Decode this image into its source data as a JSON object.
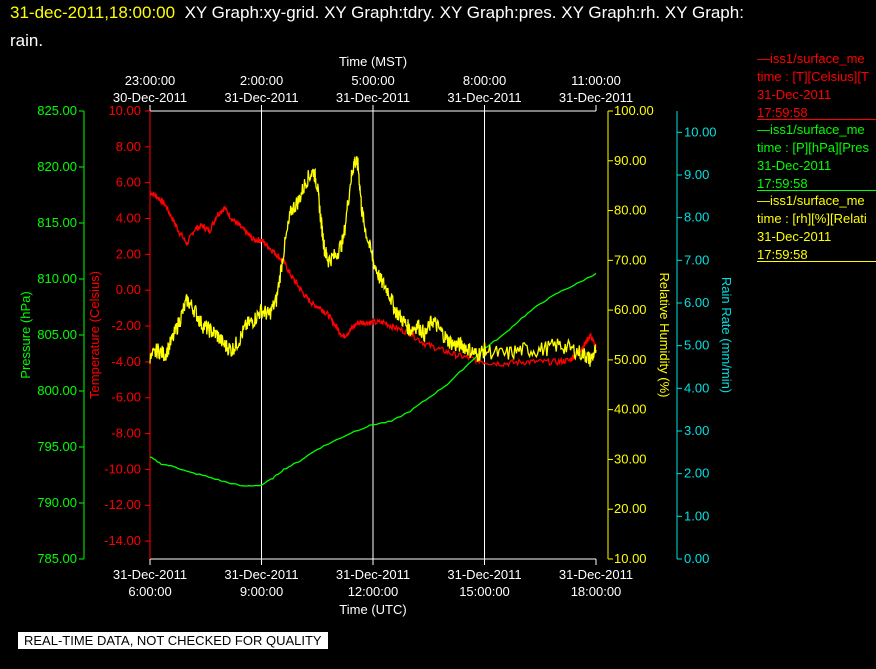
{
  "header": {
    "timestamp": "31-dec-2011,18:00:00",
    "title_line1": "XY Graph:xy-grid.  XY Graph:tdry.  XY Graph:pres.  XY Graph:rh.  XY Graph:",
    "title_line2": "rain."
  },
  "disclaimer": "REAL-TIME DATA, NOT CHECKED FOR QUALITY",
  "legend": [
    {
      "line1": "—iss1/surface_me",
      "line2": "time : [T][Celsius][T",
      "line3": "31-Dec-2011",
      "line4": "17:59:58",
      "color": "#ff0000"
    },
    {
      "line1": "—iss1/surface_me",
      "line2": "time : [P][hPa][Pres",
      "line3": "31-Dec-2011",
      "line4": "17:59:58",
      "color": "#00ff00"
    },
    {
      "line1": "—iss1/surface_me",
      "line2": "time : [rh][%][Relati",
      "line3": "31-Dec-2011",
      "line4": "17:59:58",
      "color": "#ffff00"
    }
  ],
  "chart_data": {
    "type": "line",
    "x_bottom_label": "Time (UTC)",
    "x_top_label": "Time (MST)",
    "x_range_hours_utc": [
      6,
      18
    ],
    "x_bottom_ticks": [
      {
        "hour": 6,
        "date": "31-Dec-2011",
        "time": "6:00:00"
      },
      {
        "hour": 9,
        "date": "31-Dec-2011",
        "time": "9:00:00"
      },
      {
        "hour": 12,
        "date": "31-Dec-2011",
        "time": "12:00:00"
      },
      {
        "hour": 15,
        "date": "31-Dec-2011",
        "time": "15:00:00"
      },
      {
        "hour": 18,
        "date": "31-Dec-2011",
        "time": "18:00:00"
      }
    ],
    "x_top_ticks": [
      {
        "hour": 6,
        "time": "23:00:00",
        "date": "30-Dec-2011"
      },
      {
        "hour": 9,
        "time": "2:00:00",
        "date": "31-Dec-2011"
      },
      {
        "hour": 12,
        "time": "5:00:00",
        "date": "31-Dec-2011"
      },
      {
        "hour": 15,
        "time": "8:00:00",
        "date": "31-Dec-2011"
      },
      {
        "hour": 18,
        "time": "11:00:00",
        "date": "31-Dec-2011"
      }
    ],
    "axes": {
      "pressure": {
        "label": "Pressure (hPa)",
        "color": "#00ff00",
        "min": 785,
        "max": 825,
        "step": 5,
        "decimals": 2
      },
      "temperature": {
        "label": "Temperature (Celsius)",
        "color": "#ff0000",
        "min": -15,
        "max": 10,
        "ticks": [
          10,
          8,
          6,
          4,
          2,
          0,
          -2,
          -4,
          -6,
          -8,
          -10,
          -12,
          -14
        ],
        "decimals": 2
      },
      "humidity": {
        "label": "Relative Humidity (%)",
        "color": "#ffff00",
        "min": 10,
        "max": 100,
        "step": 10,
        "decimals": 2
      },
      "rain": {
        "label": "Rain Rate (mm/min)",
        "color": "#00e0e0",
        "min": 0,
        "max": 10.5,
        "ticks": [
          0,
          1,
          2,
          3,
          4,
          5,
          6,
          7,
          8,
          9,
          10
        ],
        "decimals": 2
      }
    },
    "grid": "vertical lines at major x ticks",
    "series": [
      {
        "name": "iss1/surface_me T",
        "axis": "temperature",
        "color": "#ff0000",
        "x": [
          6.0,
          6.2,
          6.4,
          6.6,
          6.8,
          7.0,
          7.2,
          7.4,
          7.6,
          7.8,
          8.0,
          8.2,
          8.4,
          8.6,
          8.8,
          9.0,
          9.2,
          9.4,
          9.6,
          9.8,
          10.0,
          10.2,
          10.4,
          10.6,
          10.8,
          11.0,
          11.2,
          11.4,
          11.6,
          11.8,
          12.0,
          12.3,
          12.6,
          13.0,
          13.4,
          13.8,
          14.2,
          14.6,
          15.0,
          15.5,
          16.0,
          16.5,
          17.0,
          17.3,
          17.5,
          17.7,
          17.85,
          18.0
        ],
        "y": [
          5.5,
          5.2,
          4.8,
          4.0,
          3.2,
          2.6,
          3.4,
          3.6,
          3.3,
          4.2,
          4.6,
          4.0,
          3.6,
          3.2,
          2.8,
          2.8,
          2.4,
          2.0,
          1.6,
          0.8,
          0.2,
          -0.4,
          -0.8,
          -1.0,
          -1.4,
          -2.0,
          -2.6,
          -2.2,
          -1.8,
          -1.8,
          -1.8,
          -1.8,
          -2.1,
          -2.4,
          -3.0,
          -3.3,
          -3.6,
          -3.8,
          -4.0,
          -4.1,
          -4.0,
          -4.0,
          -4.0,
          -3.9,
          -3.5,
          -3.0,
          -2.5,
          -3.2
        ]
      },
      {
        "name": "iss1/surface_me P",
        "axis": "pressure",
        "color": "#00ff00",
        "x": [
          6.0,
          6.3,
          6.7,
          7.0,
          7.5,
          8.0,
          8.5,
          9.0,
          9.3,
          9.6,
          10.0,
          10.5,
          11.0,
          11.5,
          12.0,
          12.5,
          13.0,
          13.5,
          14.0,
          14.5,
          15.0,
          15.5,
          16.0,
          16.5,
          17.0,
          17.5,
          18.0
        ],
        "y": [
          794.1,
          793.5,
          793.2,
          792.8,
          792.4,
          791.9,
          791.5,
          791.6,
          792.2,
          793.0,
          793.7,
          794.8,
          795.6,
          796.4,
          797.0,
          797.3,
          798.2,
          799.4,
          800.6,
          802.2,
          803.8,
          805.0,
          806.5,
          807.8,
          808.8,
          809.6,
          810.5
        ]
      },
      {
        "name": "iss1/surface_me rh",
        "axis": "humidity",
        "color": "#ffff00",
        "x": [
          6.0,
          6.2,
          6.4,
          6.6,
          6.8,
          7.0,
          7.2,
          7.4,
          7.6,
          7.8,
          8.0,
          8.2,
          8.4,
          8.6,
          8.8,
          9.0,
          9.2,
          9.4,
          9.6,
          9.8,
          10.0,
          10.2,
          10.4,
          10.5,
          10.6,
          10.7,
          10.8,
          11.0,
          11.2,
          11.4,
          11.5,
          11.6,
          11.7,
          11.8,
          12.0,
          12.2,
          12.4,
          12.6,
          12.8,
          13.0,
          13.2,
          13.4,
          13.6,
          13.8,
          14.0,
          14.2,
          14.4,
          14.6,
          14.8,
          15.0,
          15.5,
          16.0,
          16.5,
          17.0,
          17.4,
          17.7,
          17.85,
          18.0
        ],
        "y": [
          50,
          52,
          51,
          54,
          58,
          62,
          60,
          57,
          56,
          55,
          53,
          52,
          54,
          57,
          58,
          60,
          59,
          62,
          72,
          80,
          82,
          86,
          88,
          85,
          78,
          72,
          70,
          71,
          74,
          86,
          90,
          89,
          80,
          76,
          70,
          66,
          64,
          60,
          58,
          56,
          57,
          55,
          58,
          56,
          54,
          53,
          53,
          52,
          51,
          52,
          51,
          52,
          52,
          53,
          52,
          51,
          50,
          52
        ]
      },
      {
        "name": "rain",
        "axis": "rain",
        "color": "#00e0e0",
        "x": [],
        "y": []
      }
    ]
  }
}
